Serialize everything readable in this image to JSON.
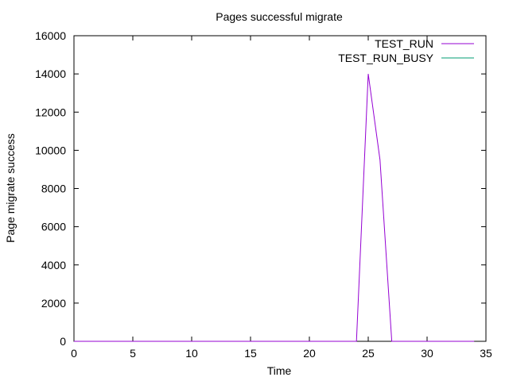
{
  "chart_data": {
    "type": "line",
    "title": "Pages successful migrate",
    "xlabel": "Time",
    "ylabel": "Page migrate success",
    "xlim": [
      0,
      35
    ],
    "ylim": [
      0,
      16000
    ],
    "x_ticks": [
      0,
      5,
      10,
      15,
      20,
      25,
      30,
      35
    ],
    "y_ticks": [
      0,
      2000,
      4000,
      6000,
      8000,
      10000,
      12000,
      14000,
      16000
    ],
    "grid": false,
    "legend_position": "top-right",
    "series": [
      {
        "name": "TEST_RUN",
        "color": "#9400d3",
        "x": [
          0,
          24,
          25,
          26,
          27,
          34
        ],
        "y": [
          0,
          0,
          14000,
          9500,
          0,
          0
        ]
      },
      {
        "name": "TEST_RUN_BUSY",
        "color": "#009e73",
        "x": [],
        "y": []
      }
    ]
  }
}
